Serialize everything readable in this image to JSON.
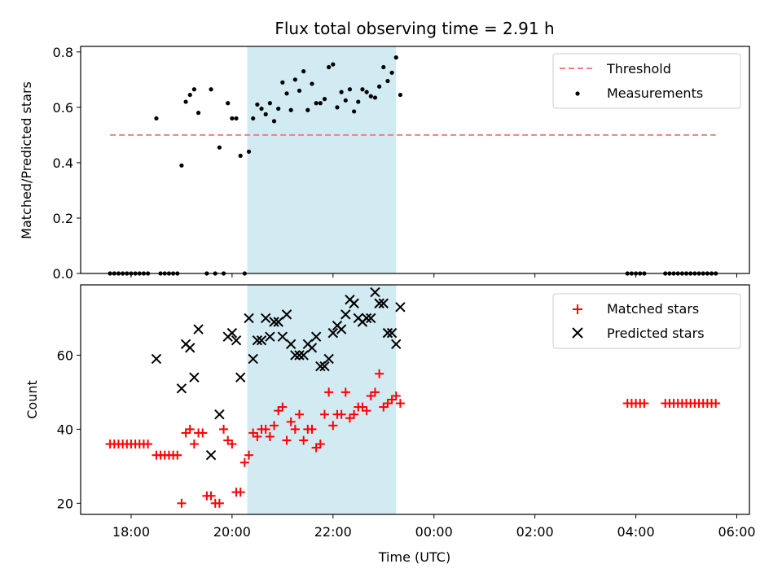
{
  "chart_data": [
    {
      "type": "scatter",
      "title": "Flux total observing time = 2.91 h",
      "ylabel": "Matched/Predicted stars",
      "xlabel": "",
      "xlim": [
        "17:00",
        "06:15"
      ],
      "ylim": [
        0,
        0.82
      ],
      "yticks": [
        "0.0",
        "0.2",
        "0.4",
        "0.6",
        "0.8"
      ],
      "grid": false,
      "legend": "top-right",
      "shaded_interval": [
        "20:18",
        "23:15"
      ],
      "shade_color": "#add8e6",
      "series": [
        {
          "name": "Threshold",
          "kind": "dashed-line",
          "color": "#f08080",
          "x": [
            "17:35",
            "05:35"
          ],
          "y": [
            0.5,
            0.5
          ]
        },
        {
          "name": "Measurements",
          "kind": "dots",
          "color": "#000000",
          "points": [
            [
              "17:35",
              0
            ],
            [
              "17:40",
              0
            ],
            [
              "17:45",
              0
            ],
            [
              "17:50",
              0
            ],
            [
              "17:55",
              0
            ],
            [
              "18:00",
              0
            ],
            [
              "18:05",
              0
            ],
            [
              "18:10",
              0
            ],
            [
              "18:15",
              0
            ],
            [
              "18:20",
              0
            ],
            [
              "18:30",
              0.56
            ],
            [
              "18:35",
              0
            ],
            [
              "18:40",
              0
            ],
            [
              "18:45",
              0
            ],
            [
              "18:50",
              0
            ],
            [
              "18:55",
              0
            ],
            [
              "19:00",
              0.39
            ],
            [
              "19:05",
              0.62
            ],
            [
              "19:10",
              0.645
            ],
            [
              "19:15",
              0.665
            ],
            [
              "19:20",
              0.58
            ],
            [
              "19:30",
              0
            ],
            [
              "19:35",
              0.665
            ],
            [
              "19:40",
              0
            ],
            [
              "19:45",
              0.455
            ],
            [
              "19:50",
              0
            ],
            [
              "19:55",
              0.615
            ],
            [
              "20:00",
              0.56
            ],
            [
              "20:05",
              0.56
            ],
            [
              "20:10",
              0.425
            ],
            [
              "20:15",
              0
            ],
            [
              "20:20",
              0.44
            ],
            [
              "20:25",
              0.56
            ],
            [
              "20:30",
              0.61
            ],
            [
              "20:35",
              0.595
            ],
            [
              "20:40",
              0.575
            ],
            [
              "20:45",
              0.615
            ],
            [
              "20:50",
              0.55
            ],
            [
              "20:55",
              0.595
            ],
            [
              "21:00",
              0.69
            ],
            [
              "21:05",
              0.65
            ],
            [
              "21:10",
              0.59
            ],
            [
              "21:15",
              0.7
            ],
            [
              "21:20",
              0.66
            ],
            [
              "21:25",
              0.73
            ],
            [
              "21:30",
              0.59
            ],
            [
              "21:35",
              0.685
            ],
            [
              "21:40",
              0.615
            ],
            [
              "21:45",
              0.615
            ],
            [
              "21:50",
              0.63
            ],
            [
              "21:55",
              0.745
            ],
            [
              "22:00",
              0.755
            ],
            [
              "22:05",
              0.6
            ],
            [
              "22:10",
              0.655
            ],
            [
              "22:15",
              0.625
            ],
            [
              "22:20",
              0.665
            ],
            [
              "22:25",
              0.585
            ],
            [
              "22:30",
              0.62
            ],
            [
              "22:35",
              0.665
            ],
            [
              "22:40",
              0.655
            ],
            [
              "22:45",
              0.64
            ],
            [
              "22:50",
              0.635
            ],
            [
              "22:55",
              0.675
            ],
            [
              "23:00",
              0.745
            ],
            [
              "23:05",
              0.695
            ],
            [
              "23:10",
              0.725
            ],
            [
              "23:15",
              0.78
            ],
            [
              "23:20",
              0.645
            ],
            [
              "03:50",
              0
            ],
            [
              "03:55",
              0
            ],
            [
              "04:00",
              0
            ],
            [
              "04:05",
              0
            ],
            [
              "04:10",
              0
            ],
            [
              "04:35",
              0
            ],
            [
              "04:40",
              0
            ],
            [
              "04:45",
              0
            ],
            [
              "04:50",
              0
            ],
            [
              "04:55",
              0
            ],
            [
              "05:00",
              0
            ],
            [
              "05:05",
              0
            ],
            [
              "05:10",
              0
            ],
            [
              "05:15",
              0
            ],
            [
              "05:20",
              0
            ],
            [
              "05:25",
              0
            ],
            [
              "05:30",
              0
            ],
            [
              "05:35",
              0
            ]
          ]
        }
      ]
    },
    {
      "type": "scatter",
      "title": "",
      "ylabel": "Count",
      "xlabel": "Time (UTC)",
      "xlim": [
        "17:00",
        "06:15"
      ],
      "xticks": [
        "18:00",
        "20:00",
        "22:00",
        "00:00",
        "02:00",
        "04:00",
        "06:00"
      ],
      "ylim": [
        17,
        79
      ],
      "yticks": [
        "20",
        "40",
        "60"
      ],
      "grid": false,
      "legend": "top-right",
      "shaded_interval": [
        "20:18",
        "23:15"
      ],
      "shade_color": "#add8e6",
      "series": [
        {
          "name": "Matched stars",
          "kind": "plus",
          "color": "#ff0000",
          "points": [
            [
              "17:35",
              36
            ],
            [
              "17:40",
              36
            ],
            [
              "17:45",
              36
            ],
            [
              "17:50",
              36
            ],
            [
              "17:55",
              36
            ],
            [
              "18:00",
              36
            ],
            [
              "18:05",
              36
            ],
            [
              "18:10",
              36
            ],
            [
              "18:15",
              36
            ],
            [
              "18:20",
              36
            ],
            [
              "18:30",
              33
            ],
            [
              "18:35",
              33
            ],
            [
              "18:40",
              33
            ],
            [
              "18:45",
              33
            ],
            [
              "18:50",
              33
            ],
            [
              "18:55",
              33
            ],
            [
              "19:00",
              20
            ],
            [
              "19:05",
              39
            ],
            [
              "19:10",
              40
            ],
            [
              "19:15",
              36
            ],
            [
              "19:20",
              39
            ],
            [
              "19:25",
              39
            ],
            [
              "19:30",
              22
            ],
            [
              "19:35",
              22
            ],
            [
              "19:40",
              20
            ],
            [
              "19:45",
              20
            ],
            [
              "19:50",
              40
            ],
            [
              "19:55",
              37
            ],
            [
              "20:00",
              36
            ],
            [
              "20:05",
              23
            ],
            [
              "20:10",
              23
            ],
            [
              "20:15",
              31
            ],
            [
              "20:20",
              33
            ],
            [
              "20:25",
              39
            ],
            [
              "20:30",
              38
            ],
            [
              "20:35",
              40
            ],
            [
              "20:40",
              40
            ],
            [
              "20:45",
              38
            ],
            [
              "20:50",
              41
            ],
            [
              "20:55",
              45
            ],
            [
              "21:00",
              46
            ],
            [
              "21:05",
              37
            ],
            [
              "21:10",
              42
            ],
            [
              "21:15",
              40
            ],
            [
              "21:20",
              44
            ],
            [
              "21:25",
              37
            ],
            [
              "21:30",
              40
            ],
            [
              "21:35",
              40
            ],
            [
              "21:40",
              35
            ],
            [
              "21:45",
              36
            ],
            [
              "21:50",
              44
            ],
            [
              "21:55",
              50
            ],
            [
              "22:00",
              41
            ],
            [
              "22:05",
              44
            ],
            [
              "22:10",
              44
            ],
            [
              "22:15",
              50
            ],
            [
              "22:20",
              43
            ],
            [
              "22:25",
              44
            ],
            [
              "22:30",
              46
            ],
            [
              "22:35",
              46
            ],
            [
              "22:40",
              45
            ],
            [
              "22:45",
              49
            ],
            [
              "22:50",
              50
            ],
            [
              "22:55",
              55
            ],
            [
              "23:00",
              46
            ],
            [
              "23:05",
              47
            ],
            [
              "23:10",
              48
            ],
            [
              "23:15",
              49
            ],
            [
              "23:20",
              47
            ],
            [
              "03:50",
              47
            ],
            [
              "03:55",
              47
            ],
            [
              "04:00",
              47
            ],
            [
              "04:05",
              47
            ],
            [
              "04:10",
              47
            ],
            [
              "04:35",
              47
            ],
            [
              "04:40",
              47
            ],
            [
              "04:45",
              47
            ],
            [
              "04:50",
              47
            ],
            [
              "04:55",
              47
            ],
            [
              "05:00",
              47
            ],
            [
              "05:05",
              47
            ],
            [
              "05:10",
              47
            ],
            [
              "05:15",
              47
            ],
            [
              "05:20",
              47
            ],
            [
              "05:25",
              47
            ],
            [
              "05:30",
              47
            ],
            [
              "05:35",
              47
            ]
          ]
        },
        {
          "name": "Predicted stars",
          "kind": "x",
          "color": "#000000",
          "points": [
            [
              "18:30",
              59
            ],
            [
              "19:00",
              51
            ],
            [
              "19:05",
              63
            ],
            [
              "19:10",
              62
            ],
            [
              "19:15",
              54
            ],
            [
              "19:20",
              67
            ],
            [
              "19:35",
              33
            ],
            [
              "19:45",
              44
            ],
            [
              "19:55",
              65
            ],
            [
              "20:00",
              66
            ],
            [
              "20:05",
              64
            ],
            [
              "20:10",
              54
            ],
            [
              "20:20",
              70
            ],
            [
              "20:25",
              59
            ],
            [
              "20:30",
              64
            ],
            [
              "20:35",
              64
            ],
            [
              "20:40",
              70
            ],
            [
              "20:45",
              65
            ],
            [
              "20:50",
              69
            ],
            [
              "20:55",
              69
            ],
            [
              "21:00",
              65
            ],
            [
              "21:05",
              71
            ],
            [
              "21:10",
              63
            ],
            [
              "21:15",
              60
            ],
            [
              "21:20",
              60
            ],
            [
              "21:25",
              60
            ],
            [
              "21:30",
              63
            ],
            [
              "21:35",
              62
            ],
            [
              "21:40",
              65
            ],
            [
              "21:45",
              57
            ],
            [
              "21:50",
              57
            ],
            [
              "21:55",
              59
            ],
            [
              "22:00",
              66
            ],
            [
              "22:05",
              68
            ],
            [
              "22:10",
              67
            ],
            [
              "22:15",
              71
            ],
            [
              "22:20",
              75
            ],
            [
              "22:25",
              74
            ],
            [
              "22:30",
              70
            ],
            [
              "22:35",
              69
            ],
            [
              "22:40",
              70
            ],
            [
              "22:45",
              70
            ],
            [
              "22:50",
              77
            ],
            [
              "22:55",
              74
            ],
            [
              "23:00",
              74
            ],
            [
              "23:05",
              66
            ],
            [
              "23:10",
              66
            ],
            [
              "23:15",
              63
            ],
            [
              "23:20",
              73
            ]
          ]
        }
      ]
    }
  ]
}
